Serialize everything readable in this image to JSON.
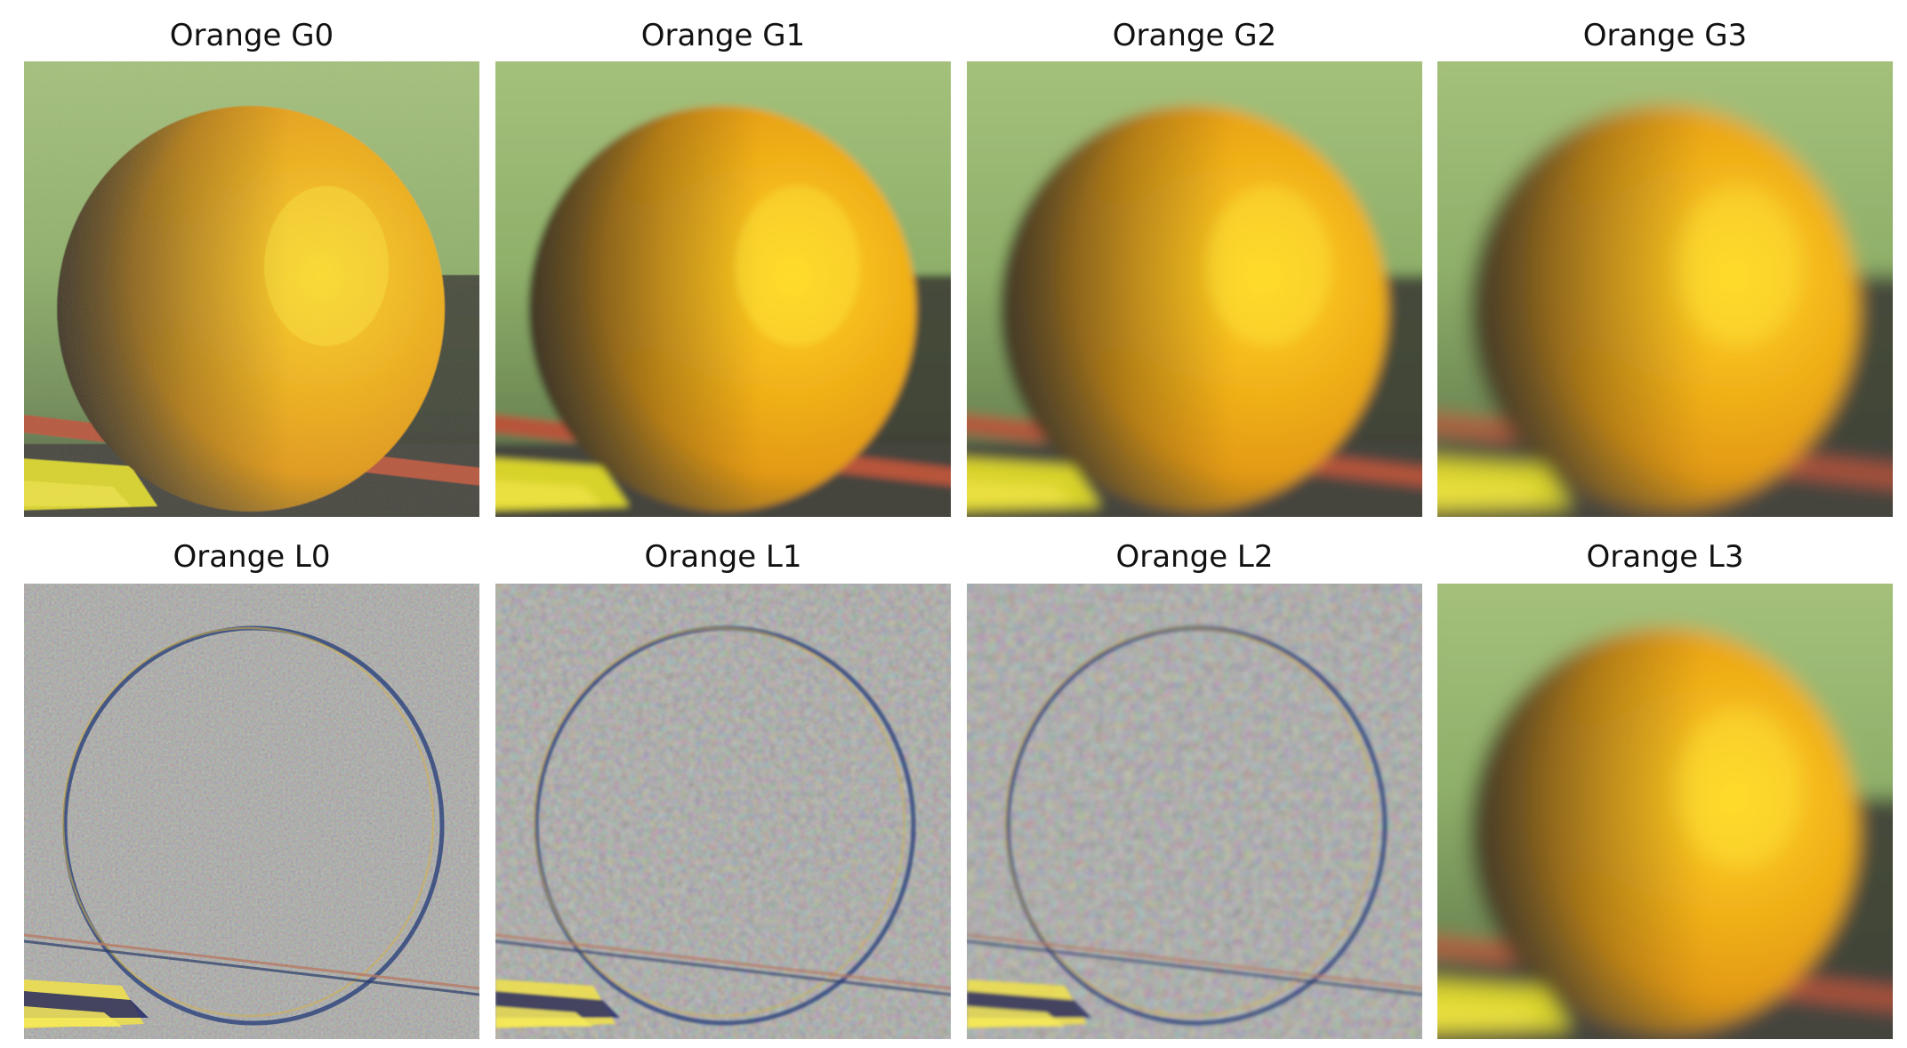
{
  "figure": {
    "panels": [
      {
        "title": "Orange G0",
        "kind": "gaussian",
        "level": 0
      },
      {
        "title": "Orange G1",
        "kind": "gaussian",
        "level": 1
      },
      {
        "title": "Orange G2",
        "kind": "gaussian",
        "level": 2
      },
      {
        "title": "Orange G3",
        "kind": "gaussian",
        "level": 3
      },
      {
        "title": "Orange L0",
        "kind": "laplacian",
        "level": 0
      },
      {
        "title": "Orange L1",
        "kind": "laplacian",
        "level": 1
      },
      {
        "title": "Orange L2",
        "kind": "laplacian",
        "level": 2
      },
      {
        "title": "Orange L3",
        "kind": "gaussian",
        "level": 3
      }
    ]
  },
  "colors": {
    "background_green": "#8fb06a",
    "orange_bright": "#ffd21a",
    "orange_mid": "#e39a12",
    "orange_dark": "#4a3a26",
    "stripe_red": "#b7543b",
    "stripe_yellow": "#d8d32a",
    "laplacian_gray": "#7b7b78"
  }
}
